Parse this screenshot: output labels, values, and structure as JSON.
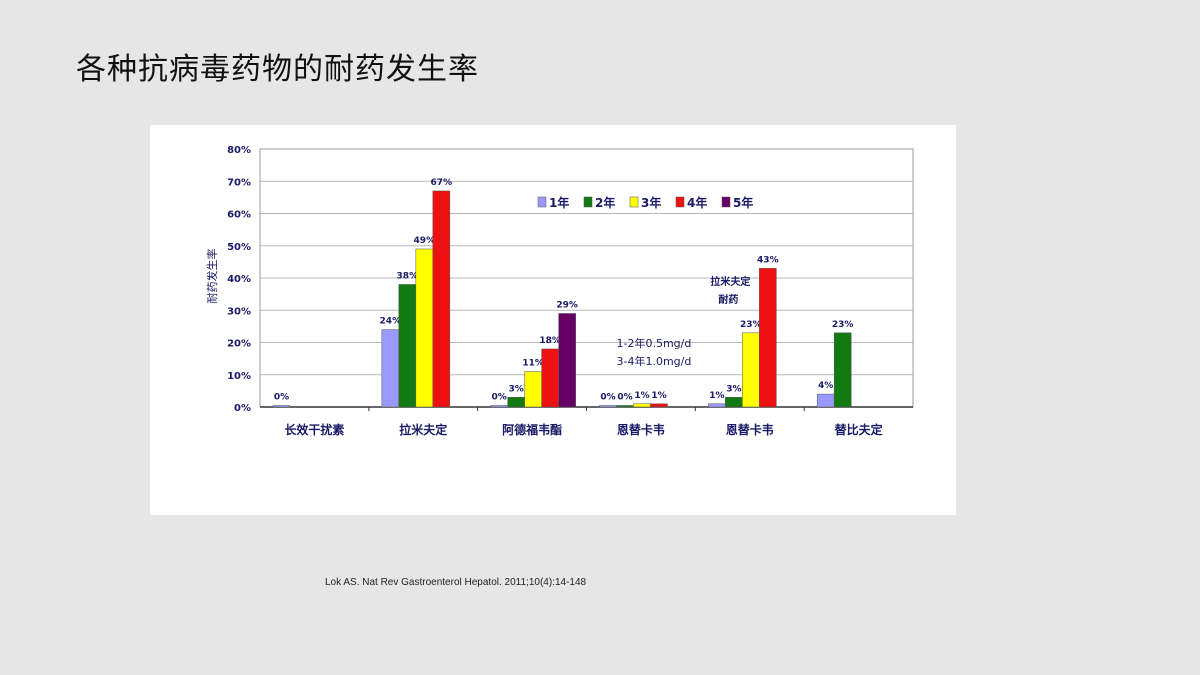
{
  "slide": {
    "title": "各种抗病毒药物的耐药发生率",
    "citation": "Lok AS. Nat Rev Gastroenterol Hepatol. 2011;10(4):14-148"
  },
  "chart_data": {
    "type": "bar",
    "ylabel": "耐药发生率",
    "ylim": [
      0,
      80
    ],
    "yticks": [
      "0%",
      "10%",
      "20%",
      "30%",
      "40%",
      "50%",
      "60%",
      "70%",
      "80%"
    ],
    "grid": true,
    "legend_position": "top-right",
    "categories": [
      "长效干扰素",
      "拉米夫定",
      "阿德福韦酯",
      "恩替卡韦",
      "恩替卡韦",
      "替比夫定"
    ],
    "series": [
      {
        "name": "1年",
        "color": "#9999ff",
        "values": [
          0,
          24,
          0,
          0,
          1,
          4
        ],
        "labels": [
          "0%",
          "24%",
          "0%",
          "0%",
          "1%",
          "4%"
        ]
      },
      {
        "name": "2年",
        "color": "#117a11",
        "values": [
          null,
          38,
          3,
          0,
          3,
          23
        ],
        "labels": [
          "",
          "38%",
          "3%",
          "0%",
          "3%",
          "23%"
        ]
      },
      {
        "name": "3年",
        "color": "#ffff00",
        "values": [
          null,
          49,
          11,
          1,
          23,
          null
        ],
        "labels": [
          "",
          "49%",
          "11%",
          "1%",
          "23%",
          ""
        ]
      },
      {
        "name": "4年",
        "color": "#ee1111",
        "values": [
          null,
          67,
          18,
          1,
          43,
          null
        ],
        "labels": [
          "",
          "67%",
          "18%",
          "1%",
          "43%",
          ""
        ]
      },
      {
        "name": "5年",
        "color": "#660066",
        "values": [
          null,
          null,
          29,
          null,
          null,
          null
        ],
        "labels": [
          "",
          "",
          "29%",
          "",
          "",
          ""
        ]
      }
    ],
    "annotations": [
      {
        "category_index": 3,
        "lines": [
          "1-2年0.5mg/d",
          "3-4年1.0mg/d"
        ]
      },
      {
        "category_index": 4,
        "lines": [
          "拉米夫定",
          "耐药"
        ]
      }
    ]
  }
}
